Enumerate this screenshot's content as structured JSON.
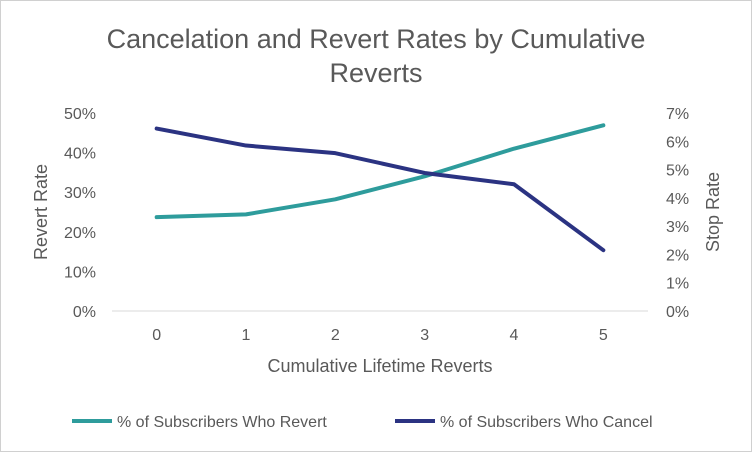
{
  "chart_data": {
    "type": "line",
    "title_lines": [
      "Cancelation  and Revert Rates by Cumulative",
      "Reverts"
    ],
    "xlabel": "Cumulative Lifetime Reverts",
    "ylabel_left": "Revert Rate",
    "ylabel_right": "Stop Rate",
    "x": [
      0,
      1,
      2,
      3,
      4,
      5
    ],
    "x_tick_labels": [
      "0",
      "1",
      "2",
      "3",
      "4",
      "5"
    ],
    "y_left_lim": [
      0,
      50
    ],
    "y_left_ticks": [
      "0%",
      "10%",
      "20%",
      "30%",
      "40%",
      "50%"
    ],
    "y_right_lim": [
      0,
      7
    ],
    "y_right_ticks": [
      "0%",
      "1%",
      "2%",
      "3%",
      "4%",
      "5%",
      "6%",
      "7%"
    ],
    "grid": false,
    "legend_position": "bottom",
    "series": [
      {
        "name": "% of Subscribers Who Revert",
        "axis": "left",
        "color": "#2e9c9c",
        "values": [
          23.7,
          24.4,
          28.2,
          34.0,
          41.0,
          46.9
        ]
      },
      {
        "name": "% of Subscribers Who Cancel",
        "axis": "right",
        "color": "#2b3382",
        "values": [
          6.45,
          5.85,
          5.58,
          4.88,
          4.48,
          2.15
        ]
      }
    ]
  }
}
